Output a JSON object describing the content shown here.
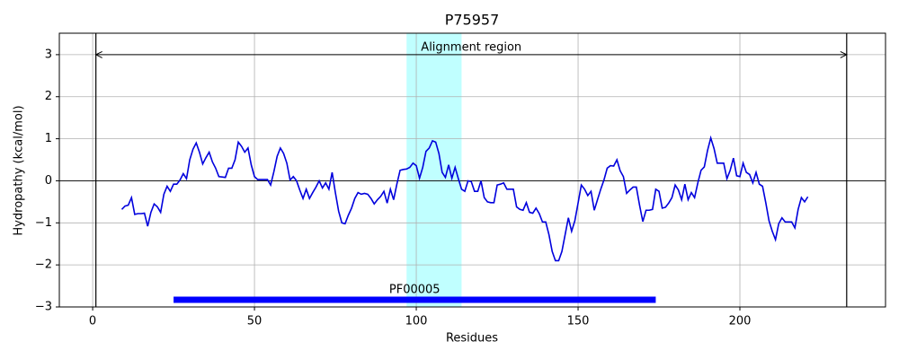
{
  "chart_data": {
    "type": "line",
    "title": "P75957",
    "xlabel": "Residues",
    "ylabel": "Hydropathy (kcal/mol)",
    "xlim": [
      -10.3,
      245
    ],
    "ylim": [
      -3,
      3.51
    ],
    "xticks": [
      0,
      50,
      100,
      150,
      200
    ],
    "yticks": [
      {
        "value": -3,
        "label": "−3"
      },
      {
        "value": -2,
        "label": "−2"
      },
      {
        "value": -1,
        "label": "−1"
      },
      0,
      1,
      2,
      3
    ],
    "grid": true,
    "hline": 0,
    "highlight": {
      "start": 97,
      "end": 114,
      "color": "#c0ffff"
    },
    "alignment_region": {
      "label": "Alignment region",
      "start": 1,
      "end": 233,
      "y": 3
    },
    "domain": {
      "label": "PF00005",
      "start": 25,
      "end": 174,
      "y": -2.83,
      "color": "#0000ff"
    },
    "series": [
      {
        "name": "P75957",
        "color": "#0000dd",
        "x": [
          9,
          10,
          11,
          12,
          13,
          14,
          15,
          16,
          17,
          18,
          19,
          20,
          21,
          22,
          23,
          24,
          25,
          26,
          27,
          28,
          29,
          30,
          31,
          32,
          33,
          34,
          35,
          36,
          37,
          38,
          39,
          40,
          41,
          42,
          43,
          44,
          45,
          46,
          47,
          48,
          49,
          50,
          51,
          52,
          53,
          54,
          55,
          56,
          57,
          58,
          59,
          60,
          61,
          62,
          63,
          64,
          65,
          66,
          67,
          68,
          69,
          70,
          71,
          72,
          73,
          74,
          75,
          76,
          77,
          78,
          79,
          80,
          81,
          82,
          83,
          84,
          85,
          86,
          87,
          88,
          89,
          90,
          91,
          92,
          93,
          94,
          95,
          96,
          97,
          98,
          99,
          100,
          101,
          102,
          103,
          104,
          105,
          106,
          107,
          108,
          109,
          110,
          111,
          112,
          113,
          114,
          115,
          116,
          117,
          118,
          119,
          120,
          121,
          122,
          123,
          124,
          125,
          126,
          127,
          128,
          129,
          130,
          131,
          132,
          133,
          134,
          135,
          136,
          137,
          138,
          139,
          140,
          141,
          142,
          143,
          144,
          145,
          146,
          147,
          148,
          149,
          150,
          151,
          152,
          153,
          154,
          155,
          156,
          157,
          158,
          159,
          160,
          161,
          162,
          163,
          164,
          165,
          166,
          167,
          168,
          169,
          170,
          171,
          172,
          173,
          174,
          175,
          176,
          177,
          178,
          179,
          180,
          181,
          182,
          183,
          184,
          185,
          186,
          187,
          188,
          189,
          190,
          191,
          192,
          193,
          194,
          195,
          196,
          197,
          198,
          199,
          200,
          201,
          202,
          203,
          204,
          205,
          206,
          207,
          208,
          209,
          210,
          211,
          212,
          213,
          214,
          215,
          216,
          217,
          218,
          219,
          220,
          221
        ],
        "values": [
          -0.68,
          -0.6,
          -0.58,
          -0.4,
          -0.8,
          -0.78,
          -0.78,
          -0.77,
          -1.08,
          -0.75,
          -0.55,
          -0.62,
          -0.75,
          -0.32,
          -0.13,
          -0.25,
          -0.08,
          -0.08,
          0.02,
          0.17,
          0.05,
          0.5,
          0.75,
          0.9,
          0.68,
          0.4,
          0.55,
          0.68,
          0.45,
          0.3,
          0.1,
          0.09,
          0.08,
          0.3,
          0.3,
          0.5,
          0.92,
          0.82,
          0.68,
          0.78,
          0.38,
          0.1,
          0.03,
          0.03,
          0.03,
          0.03,
          -0.1,
          0.22,
          0.58,
          0.78,
          0.65,
          0.42,
          0.02,
          0.1,
          0,
          -0.22,
          -0.42,
          -0.2,
          -0.42,
          -0.28,
          -0.15,
          0,
          -0.17,
          -0.05,
          -0.2,
          0.2,
          -0.28,
          -0.72,
          -1.0,
          -1.02,
          -0.82,
          -0.65,
          -0.42,
          -0.28,
          -0.32,
          -0.3,
          -0.32,
          -0.42,
          -0.55,
          -0.45,
          -0.37,
          -0.25,
          -0.53,
          -0.2,
          -0.45,
          -0.08,
          0.25,
          0.27,
          0.28,
          0.32,
          0.42,
          0.36,
          0.06,
          0.32,
          0.7,
          0.78,
          0.95,
          0.92,
          0.65,
          0.2,
          0.08,
          0.38,
          0.06,
          0.32,
          0.05,
          -0.2,
          -0.25,
          0,
          -0.02,
          -0.25,
          -0.25,
          0,
          -0.4,
          -0.5,
          -0.52,
          -0.52,
          -0.1,
          -0.08,
          -0.05,
          -0.2,
          -0.2,
          -0.2,
          -0.62,
          -0.68,
          -0.7,
          -0.52,
          -0.75,
          -0.77,
          -0.65,
          -0.78,
          -0.98,
          -0.98,
          -1.28,
          -1.68,
          -1.9,
          -1.9,
          -1.68,
          -1.28,
          -0.88,
          -1.2,
          -0.95,
          -0.53,
          -0.1,
          -0.2,
          -0.35,
          -0.25,
          -0.7,
          -0.45,
          -0.2,
          0.02,
          0.3,
          0.36,
          0.35,
          0.5,
          0.24,
          0.1,
          -0.3,
          -0.22,
          -0.15,
          -0.15,
          -0.58,
          -0.97,
          -0.7,
          -0.7,
          -0.68,
          -0.2,
          -0.25,
          -0.65,
          -0.63,
          -0.53,
          -0.4,
          -0.1,
          -0.22,
          -0.45,
          -0.08,
          -0.45,
          -0.28,
          -0.4,
          -0.05,
          0.25,
          0.33,
          0.72,
          1.02,
          0.77,
          0.42,
          0.42,
          0.42,
          0.05,
          0.25,
          0.54,
          0.12,
          0.1,
          0.42,
          0.2,
          0.15,
          -0.05,
          0.2,
          -0.08,
          -0.13,
          -0.52,
          -0.95,
          -1.2,
          -1.4,
          -1.02,
          -0.88,
          -0.98,
          -0.98,
          -0.98,
          -1.12,
          -0.68,
          -0.4,
          -0.5,
          -0.38
        ]
      }
    ]
  }
}
